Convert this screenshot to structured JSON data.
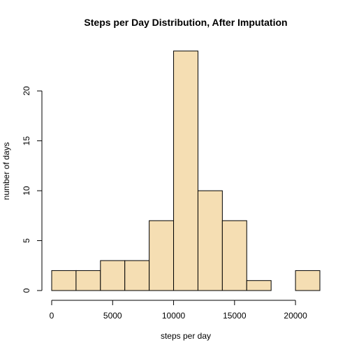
{
  "chart_data": {
    "type": "bar",
    "title": "Steps per Day Distribution, After Imputation",
    "xlabel": "steps per day",
    "ylabel": "number of days",
    "bin_edges": [
      0,
      2000,
      4000,
      6000,
      8000,
      10000,
      12000,
      14000,
      16000,
      18000,
      20000,
      22000
    ],
    "values": [
      2,
      2,
      3,
      3,
      7,
      24,
      10,
      7,
      1,
      0,
      2
    ],
    "xlim": [
      0,
      22000
    ],
    "ylim": [
      0,
      24
    ],
    "x_ticks": [
      0,
      5000,
      10000,
      15000,
      20000
    ],
    "x_tick_labels": [
      "0",
      "5000",
      "10000",
      "15000",
      "20000"
    ],
    "y_ticks": [
      0,
      5,
      10,
      15,
      20
    ],
    "y_tick_labels": [
      "0",
      "5",
      "10",
      "15",
      "20"
    ],
    "bar_color": "#f5deb3",
    "grid": false,
    "legend": "none"
  }
}
